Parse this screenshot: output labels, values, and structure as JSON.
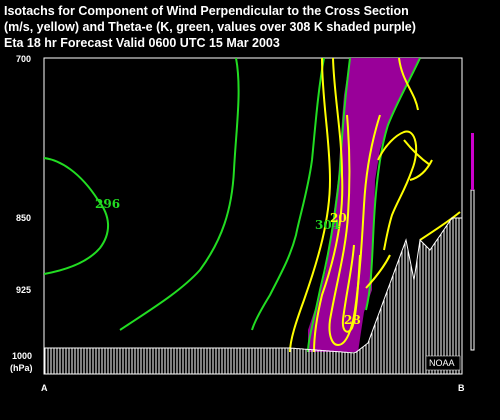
{
  "header": {
    "line1": "Isotachs for Component of Wind Perpendicular to the Cross Section",
    "line2": "(m/s, yellow) and Theta-e (K, green, values over 308 K shaded purple)",
    "line3": "Eta 18 hr Forecast Valid 0600 UTC  15 Mar 2003"
  },
  "chart_data": {
    "type": "contour",
    "title": "Isotachs for Component of Wind Perpendicular to the Cross Section (m/s, yellow) and Theta-e (K, green, values over 308 K shaded purple)",
    "subtitle": "Eta 18 hr Forecast Valid 0600 UTC  15 Mar 2003",
    "ylabel": "(hPa)",
    "y_axis": {
      "scale": "pressure",
      "inverted": true,
      "range": [
        1000,
        700
      ],
      "ticks": [
        "700",
        "850",
        "925",
        "1000"
      ]
    },
    "x_axis": {
      "endpoints": [
        "A",
        "B"
      ]
    },
    "series": [
      {
        "name": "Theta-e (K)",
        "color": "#22dd22",
        "labels": [
          "296",
          "304"
        ]
      },
      {
        "name": "Isotachs (m/s)",
        "color": "#ffff00",
        "labels": [
          "20",
          "28"
        ]
      },
      {
        "name": "Theta-e > 308 K",
        "color": "#990099",
        "fill": true
      }
    ],
    "terrain": {
      "color": "#ffffff",
      "pattern": "vertical-hatch"
    },
    "logo": "NOAA"
  }
}
